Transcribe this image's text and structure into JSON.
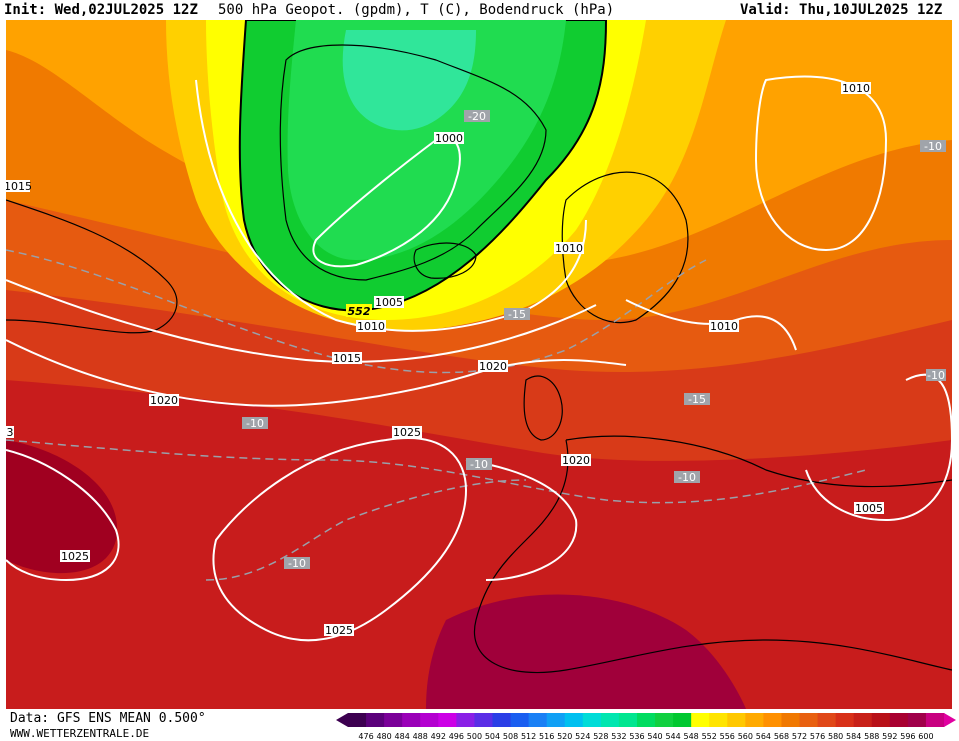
{
  "header": {
    "init_label": "Init:",
    "init_value": "Wed,02JUL2025 12Z",
    "parameter": "500 hPa Geopot. (gpdm), T (C), Bodendruck (hPa)",
    "valid_label": "Valid:",
    "valid_value": "Thu,10JUL2025 12Z"
  },
  "footer": {
    "data_source": "Data: GFS ENS MEAN 0.500°",
    "website": "WWW.WETTERZENTRALE.DE"
  },
  "colorbar": {
    "levels": [
      "476",
      "480",
      "484",
      "488",
      "492",
      "496",
      "500",
      "504",
      "508",
      "512",
      "516",
      "520",
      "524",
      "528",
      "532",
      "536",
      "540",
      "544",
      "548",
      "552",
      "556",
      "560",
      "564",
      "568",
      "572",
      "576",
      "580",
      "584",
      "588",
      "592",
      "596",
      "600"
    ],
    "colors": [
      "#3c0050",
      "#5a007a",
      "#7a0099",
      "#9a00b8",
      "#b400d0",
      "#cc00e6",
      "#8a1fe6",
      "#5a2ee6",
      "#2a3ee6",
      "#1a5ef0",
      "#1a80f5",
      "#10a0f5",
      "#00c0f0",
      "#00dcd8",
      "#00e6b0",
      "#00e690",
      "#00dc60",
      "#10d040",
      "#00c830",
      "#ffff00",
      "#ffe400",
      "#ffc800",
      "#ffaa00",
      "#ff9000",
      "#f07800",
      "#e86010",
      "#e04818",
      "#d83018",
      "#c82018",
      "#b81018",
      "#a80030",
      "#a0004a",
      "#c80080"
    ]
  },
  "map": {
    "isobar_labels": [
      "1010",
      "1010",
      "1010",
      "1010",
      "1000",
      "1005",
      "1015",
      "1015",
      "1020",
      "1020",
      "1025",
      "1025",
      "1025",
      "1020",
      "1005",
      "3"
    ],
    "temperature_labels": [
      "-20",
      "-10",
      "-15",
      "-10",
      "-10",
      "-15",
      "-10",
      "-10",
      "-10"
    ],
    "geopot_label": "552"
  },
  "colors": {
    "isobar": "#ffffff",
    "coast": "#000000",
    "temp_contour": "#9aa0aa"
  }
}
